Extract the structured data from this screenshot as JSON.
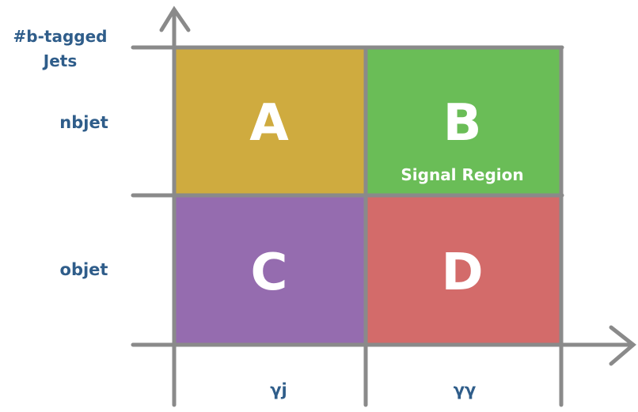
{
  "y_axis": {
    "title_line1": "#b-tagged",
    "title_line2": "Jets",
    "top_label": "nbjet",
    "bottom_label": "objet"
  },
  "x_axis": {
    "left_label": "γj",
    "right_label": "γγ"
  },
  "regions": {
    "A": {
      "label": "A",
      "color": "#cfab3f"
    },
    "B": {
      "label": "B",
      "sublabel": "Signal Region",
      "color": "#6abd57"
    },
    "C": {
      "label": "C",
      "color": "#956caf"
    },
    "D": {
      "label": "D",
      "color": "#d36b6a"
    }
  },
  "colors": {
    "grid": "#8a8a8a",
    "text": "#2f5d8a",
    "cell_text": "#ffffff"
  }
}
